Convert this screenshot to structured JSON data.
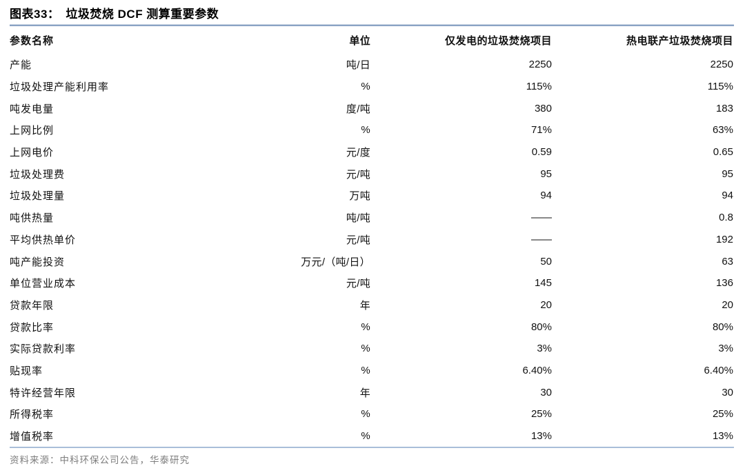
{
  "header": {
    "figure_label": "图表33：",
    "figure_title": "垃圾焚烧 DCF 测算重要参数"
  },
  "table": {
    "columns": [
      "参数名称",
      "单位",
      "仅发电的垃圾焚烧项目",
      "热电联产垃圾焚烧项目"
    ],
    "rows": [
      [
        "产能",
        "吨/日",
        "2250",
        "2250"
      ],
      [
        "垃圾处理产能利用率",
        "%",
        "115%",
        "115%"
      ],
      [
        "吨发电量",
        "度/吨",
        "380",
        "183"
      ],
      [
        "上网比例",
        "%",
        "71%",
        "63%"
      ],
      [
        "上网电价",
        "元/度",
        "0.59",
        "0.65"
      ],
      [
        "垃圾处理费",
        "元/吨",
        "95",
        "95"
      ],
      [
        "垃圾处理量",
        "万吨",
        "94",
        "94"
      ],
      [
        "吨供热量",
        "吨/吨",
        "——",
        "0.8"
      ],
      [
        "平均供热单价",
        "元/吨",
        "——",
        "192"
      ],
      [
        "吨产能投资",
        "万元/（吨/日）",
        "50",
        "63"
      ],
      [
        "单位营业成本",
        "元/吨",
        "145",
        "136"
      ],
      [
        "贷款年限",
        "年",
        "20",
        "20"
      ],
      [
        "贷款比率",
        "%",
        "80%",
        "80%"
      ],
      [
        "实际贷款利率",
        "%",
        "3%",
        "3%"
      ],
      [
        "贴现率",
        "%",
        "6.40%",
        "6.40%"
      ],
      [
        "特许经营年限",
        "年",
        "30",
        "30"
      ],
      [
        "所得税率",
        "%",
        "25%",
        "25%"
      ],
      [
        "增值税率",
        "%",
        "13%",
        "13%"
      ]
    ]
  },
  "footer": {
    "source": "资料来源：中科环保公司公告，华泰研究"
  },
  "colors": {
    "title_rule": "#8BA3C4",
    "bottom_rule": "#A9BED9",
    "text": "#111111",
    "source_text": "#7E7E7E"
  }
}
